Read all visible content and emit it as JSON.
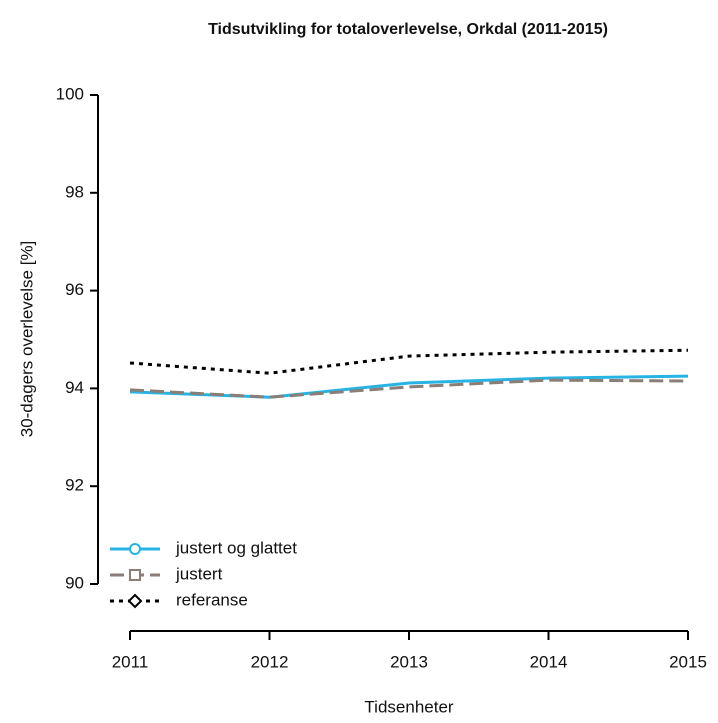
{
  "chart_data": {
    "type": "line",
    "title": "Tidsutvikling for totaloverlevelse, Orkdal (2011-2015)",
    "x_label": "Tidsenheter",
    "y_label": "30-dagers overlevelse [%]",
    "x": [
      2011,
      2012,
      2013,
      2014,
      2015
    ],
    "xlim": [
      2011,
      2015
    ],
    "xticks": [
      2011,
      2012,
      2013,
      2014,
      2015
    ],
    "ylim": [
      90,
      100
    ],
    "yticks": [
      90,
      92,
      94,
      96,
      98,
      100
    ],
    "legend": "bottom-left",
    "series": [
      {
        "name": "justert og glattet",
        "color": "#27b4e4",
        "linestyle": "solid",
        "marker": "circle",
        "values": [
          93.93,
          93.82,
          94.11,
          94.21,
          94.25
        ]
      },
      {
        "name": "justert",
        "color": "#8a7e77",
        "linestyle": "dashed",
        "marker": "square",
        "values": [
          93.97,
          93.82,
          94.03,
          94.17,
          94.15
        ]
      },
      {
        "name": "referanse",
        "color": "#000000",
        "linestyle": "dotted",
        "marker": "diamond",
        "values": [
          94.52,
          94.31,
          94.66,
          94.74,
          94.78
        ]
      }
    ]
  }
}
